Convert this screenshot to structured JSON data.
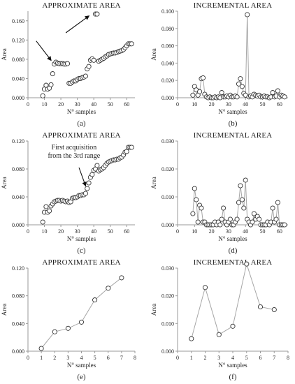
{
  "chart_data": [
    {
      "panel": "(a)",
      "type": "scatter",
      "title": "APPROXIMATE AREA",
      "xlabel": "N° samples",
      "ylabel": "Area",
      "xlim": [
        0,
        65
      ],
      "ylim": [
        0,
        0.18
      ],
      "xticks": [
        "0",
        "10",
        "20",
        "30",
        "40",
        "50",
        "60"
      ],
      "yticks": [
        "0.000",
        "0.040",
        "0.080",
        "0.120",
        "0.160"
      ],
      "series": [
        {
          "x": [
            9,
            10,
            11,
            12,
            13,
            14,
            15,
            16,
            17,
            18,
            19,
            20,
            21,
            22,
            23,
            24,
            25,
            26,
            27,
            28,
            29,
            30,
            31,
            32,
            33,
            34,
            35,
            36,
            37,
            38,
            39,
            40,
            41,
            42,
            43,
            44,
            45,
            46,
            47,
            48,
            49,
            50,
            51,
            52,
            53,
            54,
            55,
            56,
            57,
            58,
            59,
            60,
            61,
            62,
            63
          ],
          "y": [
            0.004,
            0.018,
            0.026,
            0.018,
            0.02,
            0.027,
            0.05,
            0.07,
            0.074,
            0.072,
            0.071,
            0.071,
            0.071,
            0.07,
            0.07,
            0.071,
            0.03,
            0.03,
            0.033,
            0.035,
            0.035,
            0.038,
            0.04,
            0.04,
            0.042,
            0.043,
            0.045,
            0.06,
            0.065,
            0.078,
            0.081,
            0.078,
            0.174,
            0.174,
            0.076,
            0.078,
            0.08,
            0.082,
            0.085,
            0.087,
            0.09,
            0.091,
            0.092,
            0.093,
            0.093,
            0.094,
            0.096,
            0.097,
            0.098,
            0.1,
            0.104,
            0.108,
            0.112,
            0.112,
            0.112
          ]
        }
      ],
      "connected": false,
      "arrows": true
    },
    {
      "panel": "(b)",
      "type": "line",
      "title": "INCREMENTAL AREA",
      "xlabel": "N° samples",
      "ylabel": "Area",
      "xlim": [
        0,
        65
      ],
      "ylim": [
        0,
        0.1
      ],
      "xticks": [
        "0",
        "10",
        "20",
        "30",
        "40",
        "50",
        "60"
      ],
      "yticks": [
        "0.000",
        "0.020",
        "0.040",
        "0.060",
        "0.080",
        "0.100"
      ],
      "series": [
        {
          "x": [
            9,
            10,
            11,
            12,
            13,
            14,
            15,
            16,
            17,
            18,
            19,
            20,
            21,
            22,
            23,
            24,
            25,
            26,
            27,
            28,
            29,
            30,
            31,
            32,
            33,
            34,
            35,
            36,
            37,
            38,
            39,
            40,
            41,
            42,
            43,
            44,
            45,
            46,
            47,
            48,
            49,
            50,
            51,
            52,
            53,
            54,
            55,
            56,
            57,
            58,
            59,
            60,
            61,
            62,
            63
          ],
          "y": [
            0.003,
            0.013,
            0.009,
            0.003,
            0.007,
            0.022,
            0.023,
            0.004,
            0.001,
            0,
            0.001,
            0,
            0,
            0.001,
            0,
            0.001,
            0,
            0.006,
            0.001,
            0.001,
            0.002,
            0.001,
            0.003,
            0.001,
            0.001,
            0.002,
            0.001,
            0.016,
            0.022,
            0.013,
            0.005,
            0.003,
            0.096,
            0.001,
            0.002,
            0.001,
            0.004,
            0.003,
            0.002,
            0.003,
            0.001,
            0.001,
            0.002,
            0.001,
            0.001,
            0,
            0.001,
            0.006,
            0.001,
            0.002,
            0.008,
            0.001,
            0.003,
            0.002,
            0.001
          ]
        }
      ],
      "connected": true
    },
    {
      "panel": "(c)",
      "type": "scatter",
      "title": "APPROXIMATE AREA",
      "xlabel": "N° samples",
      "ylabel": "Area",
      "xlim": [
        0,
        65
      ],
      "ylim": [
        0,
        0.12
      ],
      "xticks": [
        "0",
        "10",
        "20",
        "30",
        "40",
        "50",
        "60"
      ],
      "yticks": [
        "0.000",
        "0.040",
        "0.080",
        "0.120"
      ],
      "annotation": "First acquisition from the 3rd range",
      "series": [
        {
          "x": [
            9,
            10,
            11,
            12,
            13,
            14,
            15,
            16,
            17,
            18,
            19,
            20,
            21,
            22,
            23,
            24,
            25,
            26,
            27,
            28,
            29,
            30,
            31,
            32,
            33,
            34,
            35,
            36,
            37,
            38,
            39,
            40,
            41,
            42,
            43,
            44,
            45,
            46,
            47,
            48,
            49,
            50,
            51,
            52,
            53,
            54,
            55,
            56,
            57,
            58,
            59,
            60,
            61,
            62,
            63
          ],
          "y": [
            0.004,
            0.018,
            0.026,
            0.018,
            0.02,
            0.027,
            0.03,
            0.033,
            0.034,
            0.035,
            0.035,
            0.034,
            0.035,
            0.034,
            0.033,
            0.034,
            0.032,
            0.033,
            0.038,
            0.039,
            0.039,
            0.04,
            0.042,
            0.042,
            0.043,
            0.043,
            0.045,
            0.052,
            0.06,
            0.068,
            0.072,
            0.078,
            0.08,
            0.085,
            0.077,
            0.079,
            0.08,
            0.082,
            0.085,
            0.088,
            0.09,
            0.091,
            0.092,
            0.093,
            0.093,
            0.094,
            0.094,
            0.096,
            0.097,
            0.1,
            0.104,
            0.105,
            0.111,
            0.111,
            0.111
          ]
        }
      ],
      "connected": false
    },
    {
      "panel": "(d)",
      "type": "line",
      "title": "INCREMENTAL AREA",
      "xlabel": "N° samples",
      "ylabel": "Area",
      "xlim": [
        0,
        65
      ],
      "ylim": [
        0,
        0.03
      ],
      "xticks": [
        "0",
        "10",
        "20",
        "30",
        "40",
        "50",
        "60"
      ],
      "yticks": [
        "0.000",
        "0.010",
        "0.020",
        "0.030"
      ],
      "series": [
        {
          "x": [
            9,
            10,
            11,
            12,
            13,
            14,
            15,
            16,
            17,
            18,
            19,
            20,
            21,
            22,
            23,
            24,
            25,
            26,
            27,
            28,
            29,
            30,
            31,
            32,
            33,
            34,
            35,
            36,
            37,
            38,
            39,
            40,
            41,
            42,
            43,
            44,
            45,
            46,
            47,
            48,
            49,
            50,
            51,
            52,
            53,
            54,
            55,
            56,
            57,
            58,
            59,
            60,
            61,
            62,
            63
          ],
          "y": [
            0.004,
            0.013,
            0.009,
            0.001,
            0.007,
            0.006,
            0.001,
            0.001,
            0,
            0,
            0,
            0,
            0,
            0.001,
            0,
            0.001,
            0,
            0.002,
            0.006,
            0.001,
            0,
            0.001,
            0.002,
            0,
            0,
            0.001,
            0.002,
            0.008,
            0.014,
            0.009,
            0.006,
            0.016,
            0.002,
            0.001,
            0,
            0.001,
            0.004,
            0.002,
            0.003,
            0.002,
            0,
            0,
            0,
            0,
            0.001,
            0,
            0.001,
            0.006,
            0.001,
            0.002,
            0.008,
            0,
            0,
            0,
            0
          ]
        }
      ],
      "connected": true
    },
    {
      "panel": "(e)",
      "type": "line",
      "title": "APPROXIMATE AREA",
      "xlabel": "N° samples",
      "ylabel": "Area",
      "xlim": [
        0,
        8
      ],
      "ylim": [
        0,
        0.12
      ],
      "xticks": [
        "0",
        "1",
        "2",
        "3",
        "4",
        "5",
        "6",
        "7",
        "8"
      ],
      "yticks": [
        "0.000",
        "0.040",
        "0.080",
        "0.120"
      ],
      "series": [
        {
          "x": [
            1,
            2,
            3,
            4,
            5,
            6,
            7
          ],
          "y": [
            0.004,
            0.028,
            0.033,
            0.042,
            0.074,
            0.091,
            0.106
          ]
        }
      ],
      "connected": true
    },
    {
      "panel": "(f)",
      "type": "line",
      "title": "INCREMENTAL AREA",
      "xlabel": "N° samples",
      "ylabel": "Area",
      "xlim": [
        0,
        8
      ],
      "ylim": [
        0,
        0.03
      ],
      "xticks": [
        "0",
        "1",
        "2",
        "3",
        "4",
        "5",
        "6",
        "7",
        "8"
      ],
      "yticks": [
        "0.000",
        "0.010",
        "0.020",
        "0.030"
      ],
      "series": [
        {
          "x": [
            1,
            2,
            3,
            4,
            5,
            6,
            7
          ],
          "y": [
            0.0045,
            0.023,
            0.006,
            0.009,
            0.0315,
            0.016,
            0.015
          ]
        }
      ],
      "connected": true
    }
  ]
}
